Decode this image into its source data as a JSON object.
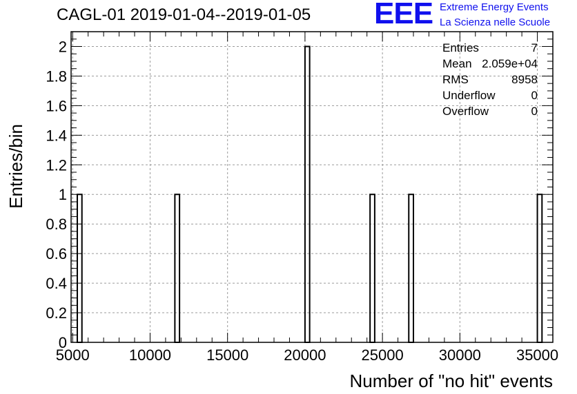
{
  "chart_data": {
    "type": "bar",
    "title": "CAGL-01 2019-01-04--2019-01-05",
    "xlabel": "Number of \"no hit\" events",
    "ylabel": "Entries/bin",
    "xlim": [
      4900,
      36000
    ],
    "ylim": [
      0,
      2.1
    ],
    "bin_width": 300,
    "x_ticks": [
      5000,
      10000,
      15000,
      20000,
      25000,
      30000,
      35000
    ],
    "y_ticks": [
      0,
      0.2,
      0.4,
      0.6,
      0.8,
      1,
      1.2,
      1.4,
      1.6,
      1.8,
      2
    ],
    "bins": [
      {
        "x": 5300,
        "count": 1
      },
      {
        "x": 11600,
        "count": 1
      },
      {
        "x": 20000,
        "count": 2
      },
      {
        "x": 24200,
        "count": 1
      },
      {
        "x": 26700,
        "count": 1
      },
      {
        "x": 35000,
        "count": 1
      }
    ],
    "grid": true,
    "legend": "none"
  },
  "logo": {
    "mark": "EEE",
    "line1": "Extreme Energy Events",
    "line2": "La Scienza nelle Scuole"
  },
  "stats": {
    "entries_label": "Entries",
    "entries_value": "7",
    "mean_label": "Mean",
    "mean_value": "2.059e+04",
    "rms_label": "RMS",
    "rms_value": "8958",
    "underflow_label": "Underflow",
    "underflow_value": "0",
    "overflow_label": "Overflow",
    "overflow_value": "0"
  },
  "colors": {
    "logo": "#1010ee",
    "grid": "#9a9a9a",
    "bars": "#000000"
  }
}
